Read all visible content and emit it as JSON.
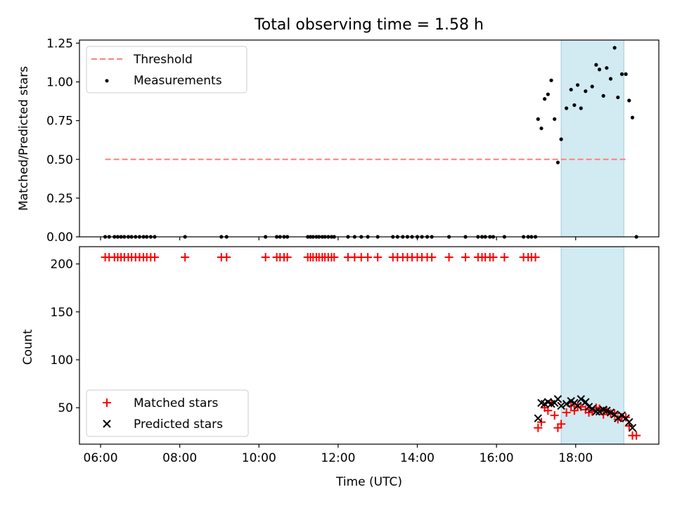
{
  "chart_data": [
    {
      "type": "scatter",
      "title": "Total observing time = 1.58 h",
      "xlabel": "",
      "ylabel": "Matched/Predicted stars",
      "ylim": [
        0,
        1.27
      ],
      "xlim": [
        "05:28",
        "20:06"
      ],
      "xticks": [
        "06:00",
        "08:00",
        "10:00",
        "12:00",
        "14:00",
        "16:00",
        "18:00"
      ],
      "yticks": [
        "0.00",
        "0.25",
        "0.50",
        "0.75",
        "1.00",
        "1.25"
      ],
      "shaded_region": {
        "start": "17:38",
        "end": "19:13",
        "color": "#add8e6"
      },
      "threshold": {
        "name": "Threshold",
        "value": 0.5,
        "x": [
          "06:07",
          "19:20"
        ],
        "color": "#ff7f7f"
      },
      "series": [
        {
          "name": "Measurements",
          "color": "#000000",
          "marker": "dot",
          "points": [
            [
              "06:07",
              0
            ],
            [
              "06:13",
              0
            ],
            [
              "06:21",
              0
            ],
            [
              "06:26",
              0
            ],
            [
              "06:31",
              0
            ],
            [
              "06:36",
              0
            ],
            [
              "06:42",
              0
            ],
            [
              "06:47",
              0
            ],
            [
              "06:53",
              0
            ],
            [
              "06:59",
              0
            ],
            [
              "07:05",
              0
            ],
            [
              "07:10",
              0
            ],
            [
              "07:16",
              0
            ],
            [
              "07:22",
              0
            ],
            [
              "08:08",
              0
            ],
            [
              "09:03",
              0
            ],
            [
              "09:11",
              0
            ],
            [
              "10:10",
              0
            ],
            [
              "10:27",
              0
            ],
            [
              "10:32",
              0
            ],
            [
              "10:38",
              0
            ],
            [
              "10:43",
              0
            ],
            [
              "11:14",
              0
            ],
            [
              "11:18",
              0
            ],
            [
              "11:22",
              0
            ],
            [
              "11:27",
              0
            ],
            [
              "11:31",
              0
            ],
            [
              "11:36",
              0
            ],
            [
              "11:40",
              0
            ],
            [
              "11:45",
              0
            ],
            [
              "11:50",
              0
            ],
            [
              "11:54",
              0
            ],
            [
              "12:15",
              0
            ],
            [
              "12:25",
              0
            ],
            [
              "12:35",
              0
            ],
            [
              "12:45",
              0
            ],
            [
              "13:00",
              0
            ],
            [
              "13:23",
              0
            ],
            [
              "13:30",
              0
            ],
            [
              "13:38",
              0
            ],
            [
              "13:45",
              0
            ],
            [
              "13:52",
              0
            ],
            [
              "14:00",
              0
            ],
            [
              "14:07",
              0
            ],
            [
              "14:15",
              0
            ],
            [
              "14:22",
              0
            ],
            [
              "14:48",
              0
            ],
            [
              "15:13",
              0
            ],
            [
              "15:32",
              0
            ],
            [
              "15:38",
              0
            ],
            [
              "15:43",
              0
            ],
            [
              "15:50",
              0
            ],
            [
              "15:55",
              0
            ],
            [
              "16:12",
              0
            ],
            [
              "16:41",
              0
            ],
            [
              "16:48",
              0
            ],
            [
              "16:53",
              0
            ],
            [
              "16:59",
              0
            ],
            [
              "17:03",
              0.76
            ],
            [
              "17:08",
              0.7
            ],
            [
              "17:13",
              0.89
            ],
            [
              "17:18",
              0.92
            ],
            [
              "17:23",
              1.01
            ],
            [
              "17:28",
              0.76
            ],
            [
              "17:33",
              0.48
            ],
            [
              "17:38",
              0.63
            ],
            [
              "17:46",
              0.83
            ],
            [
              "17:53",
              0.95
            ],
            [
              "17:58",
              0.85
            ],
            [
              "18:03",
              0.98
            ],
            [
              "18:08",
              0.83
            ],
            [
              "18:15",
              0.94
            ],
            [
              "18:25",
              0.97
            ],
            [
              "18:31",
              1.11
            ],
            [
              "18:36",
              1.08
            ],
            [
              "18:42",
              0.91
            ],
            [
              "18:47",
              1.09
            ],
            [
              "18:53",
              1.02
            ],
            [
              "18:59",
              1.22
            ],
            [
              "19:04",
              0.9
            ],
            [
              "19:10",
              1.05
            ],
            [
              "19:16",
              1.05
            ],
            [
              "19:21",
              0.88
            ],
            [
              "19:26",
              0.77
            ],
            [
              "19:32",
              0
            ]
          ]
        }
      ]
    },
    {
      "type": "scatter",
      "title": "",
      "xlabel": "Time (UTC)",
      "ylabel": "Count",
      "ylim": [
        12,
        218
      ],
      "xlim": [
        "05:28",
        "20:06"
      ],
      "xticks": [
        "06:00",
        "08:00",
        "10:00",
        "12:00",
        "14:00",
        "16:00",
        "18:00"
      ],
      "yticks": [
        "50",
        "100",
        "150",
        "200"
      ],
      "shaded_region": {
        "start": "17:38",
        "end": "19:13",
        "color": "#add8e6"
      },
      "legend_position": "lower-left",
      "series": [
        {
          "name": "Matched stars",
          "color": "#ff0000",
          "marker": "plus",
          "points": [
            [
              "06:07",
              207
            ],
            [
              "06:13",
              207
            ],
            [
              "06:21",
              207
            ],
            [
              "06:26",
              207
            ],
            [
              "06:31",
              207
            ],
            [
              "06:36",
              207
            ],
            [
              "06:42",
              207
            ],
            [
              "06:47",
              207
            ],
            [
              "06:53",
              207
            ],
            [
              "06:59",
              207
            ],
            [
              "07:05",
              207
            ],
            [
              "07:10",
              207
            ],
            [
              "07:16",
              207
            ],
            [
              "07:22",
              207
            ],
            [
              "08:08",
              207
            ],
            [
              "09:03",
              207
            ],
            [
              "09:11",
              207
            ],
            [
              "10:10",
              207
            ],
            [
              "10:27",
              207
            ],
            [
              "10:32",
              207
            ],
            [
              "10:38",
              207
            ],
            [
              "10:43",
              207
            ],
            [
              "11:14",
              207
            ],
            [
              "11:18",
              207
            ],
            [
              "11:22",
              207
            ],
            [
              "11:27",
              207
            ],
            [
              "11:31",
              207
            ],
            [
              "11:36",
              207
            ],
            [
              "11:40",
              207
            ],
            [
              "11:45",
              207
            ],
            [
              "11:50",
              207
            ],
            [
              "11:54",
              207
            ],
            [
              "12:15",
              207
            ],
            [
              "12:25",
              207
            ],
            [
              "12:35",
              207
            ],
            [
              "12:45",
              207
            ],
            [
              "13:00",
              207
            ],
            [
              "13:23",
              207
            ],
            [
              "13:30",
              207
            ],
            [
              "13:38",
              207
            ],
            [
              "13:45",
              207
            ],
            [
              "13:52",
              207
            ],
            [
              "14:00",
              207
            ],
            [
              "14:07",
              207
            ],
            [
              "14:15",
              207
            ],
            [
              "14:22",
              207
            ],
            [
              "14:48",
              207
            ],
            [
              "15:13",
              207
            ],
            [
              "15:32",
              207
            ],
            [
              "15:38",
              207
            ],
            [
              "15:43",
              207
            ],
            [
              "15:50",
              207
            ],
            [
              "15:55",
              207
            ],
            [
              "16:12",
              207
            ],
            [
              "16:41",
              207
            ],
            [
              "16:48",
              207
            ],
            [
              "16:53",
              207
            ],
            [
              "16:59",
              207
            ],
            [
              "17:03",
              29
            ],
            [
              "17:08",
              35
            ],
            [
              "17:13",
              50
            ],
            [
              "17:18",
              47
            ],
            [
              "17:23",
              55
            ],
            [
              "17:28",
              42
            ],
            [
              "17:33",
              29
            ],
            [
              "17:38",
              33
            ],
            [
              "17:46",
              45
            ],
            [
              "17:53",
              52
            ],
            [
              "17:58",
              47
            ],
            [
              "18:03",
              51
            ],
            [
              "18:08",
              51
            ],
            [
              "18:15",
              48
            ],
            [
              "18:20",
              45
            ],
            [
              "18:25",
              46
            ],
            [
              "18:31",
              50
            ],
            [
              "18:36",
              49
            ],
            [
              "18:42",
              43
            ],
            [
              "18:47",
              47
            ],
            [
              "18:53",
              44
            ],
            [
              "18:59",
              44
            ],
            [
              "19:04",
              38
            ],
            [
              "19:10",
              40
            ],
            [
              "19:16",
              40
            ],
            [
              "19:21",
              31
            ],
            [
              "19:26",
              21
            ],
            [
              "19:32",
              21
            ]
          ]
        },
        {
          "name": "Predicted stars",
          "color": "#000000",
          "marker": "x",
          "points": [
            [
              "17:03",
              39
            ],
            [
              "17:08",
              55
            ],
            [
              "17:13",
              54
            ],
            [
              "17:18",
              56
            ],
            [
              "17:23",
              54
            ],
            [
              "17:28",
              55
            ],
            [
              "17:33",
              59
            ],
            [
              "17:38",
              52
            ],
            [
              "17:46",
              54
            ],
            [
              "17:53",
              57
            ],
            [
              "17:58",
              55
            ],
            [
              "18:03",
              52
            ],
            [
              "18:08",
              59
            ],
            [
              "18:15",
              56
            ],
            [
              "18:20",
              51
            ],
            [
              "18:25",
              49
            ],
            [
              "18:31",
              46
            ],
            [
              "18:36",
              46
            ],
            [
              "18:42",
              48
            ],
            [
              "18:47",
              47
            ],
            [
              "18:53",
              45
            ],
            [
              "18:59",
              43
            ],
            [
              "19:04",
              39
            ],
            [
              "19:10",
              42
            ],
            [
              "19:16",
              39
            ],
            [
              "19:21",
              35
            ],
            [
              "19:26",
              29
            ]
          ]
        }
      ]
    }
  ]
}
